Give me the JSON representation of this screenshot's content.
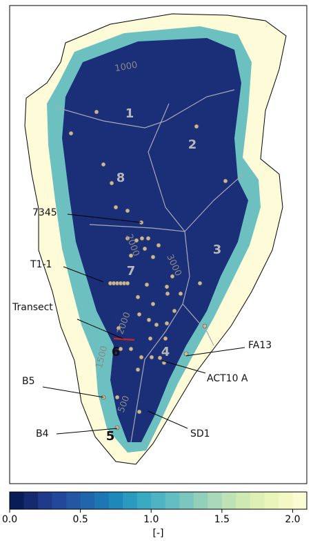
{
  "regions": [
    "1",
    "2",
    "8",
    "3",
    "7",
    "4",
    "6",
    "5"
  ],
  "sites": [
    "7345",
    "T1-1",
    "Transect",
    "FA13",
    "ACT10 A",
    "B5",
    "B4",
    "SD1"
  ],
  "contours": [
    "1000",
    "2000",
    "3000",
    "2000",
    "1500",
    "500"
  ],
  "colorbar": {
    "range": [
      0,
      2.1
    ],
    "ticks": [
      {
        "value": 0,
        "label": "0.0"
      },
      {
        "value": 0.5,
        "label": "0.5"
      },
      {
        "value": 1,
        "label": "1.0"
      },
      {
        "value": 1.5,
        "label": "1.5"
      },
      {
        "value": 2,
        "label": "2.0"
      }
    ],
    "unit": "[-]"
  }
}
